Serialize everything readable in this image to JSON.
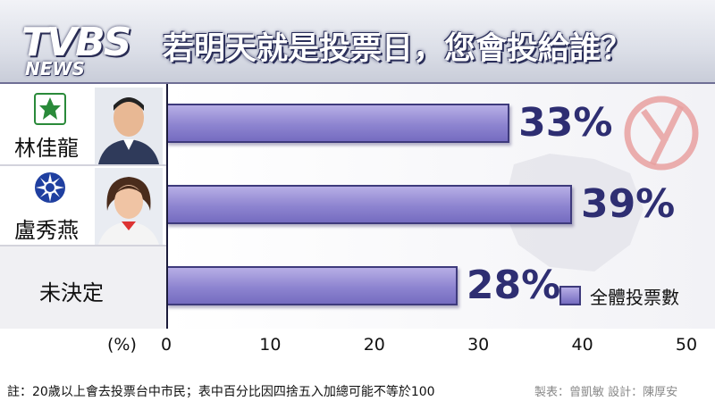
{
  "brand": {
    "logo_main": "TVBS",
    "logo_sub": "NEWS"
  },
  "title": "若明天就是投票日，您會投給誰？",
  "candidates": [
    {
      "name": "林佳龍",
      "party_emblem": "dpp-emblem-icon",
      "photo": "candidate-photo-male"
    },
    {
      "name": "盧秀燕",
      "party_emblem": "kmt-emblem-icon",
      "photo": "candidate-photo-female"
    },
    {
      "name": "未決定"
    }
  ],
  "chart_data": {
    "type": "bar",
    "orientation": "horizontal",
    "categories": [
      "林佳龍",
      "盧秀燕",
      "未決定"
    ],
    "series": [
      {
        "name": "全體投票數",
        "values": [
          33,
          39,
          28
        ]
      }
    ],
    "value_labels": [
      "33%",
      "39%",
      "28%"
    ],
    "xlabel": "(%)",
    "xlim": [
      0,
      50
    ],
    "xticks": [
      "0",
      "10",
      "20",
      "30",
      "40",
      "50"
    ],
    "legend": "bottom-right",
    "bar_color": "#8d84d0"
  },
  "footer": {
    "note": "註：20歲以上會去投票台中市民；表中百分比因四捨五入加總可能不等於100",
    "credit": "製表：曾凱敏   設計：陳厚安"
  }
}
